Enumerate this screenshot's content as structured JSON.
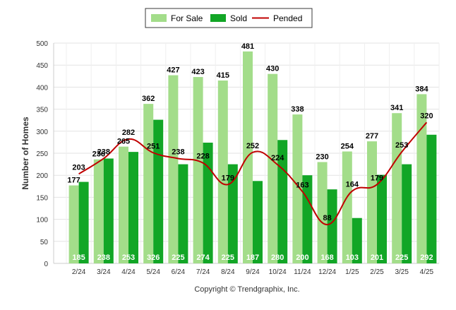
{
  "chart_data": {
    "type": "bar",
    "categories": [
      "2/24",
      "3/24",
      "4/24",
      "5/24",
      "6/24",
      "7/24",
      "8/24",
      "9/24",
      "10/24",
      "11/24",
      "12/24",
      "1/25",
      "2/25",
      "3/25",
      "4/25"
    ],
    "series": [
      {
        "name": "For Sale",
        "type": "bar",
        "color": "#a3dd8a",
        "values": [
          177,
          236,
          265,
          362,
          427,
          423,
          415,
          481,
          430,
          338,
          230,
          254,
          277,
          341,
          384
        ]
      },
      {
        "name": "Sold",
        "type": "bar",
        "color": "#12a626",
        "values": [
          185,
          238,
          253,
          326,
          225,
          274,
          225,
          187,
          280,
          200,
          168,
          103,
          201,
          225,
          292
        ]
      },
      {
        "name": "Pended",
        "type": "line",
        "color": "#c00000",
        "values": [
          203,
          238,
          282,
          251,
          238,
          228,
          179,
          252,
          224,
          163,
          88,
          164,
          179,
          253,
          320
        ]
      }
    ],
    "ylabel": "Number of Homes",
    "xlabel": "",
    "ylim": [
      0,
      500
    ],
    "yticks": [
      0,
      50,
      100,
      150,
      200,
      250,
      300,
      350,
      400,
      450,
      500
    ],
    "grid": true,
    "legend_position": "top-center"
  },
  "footer": {
    "copyright": "Copyright © Trendgraphix, Inc."
  }
}
